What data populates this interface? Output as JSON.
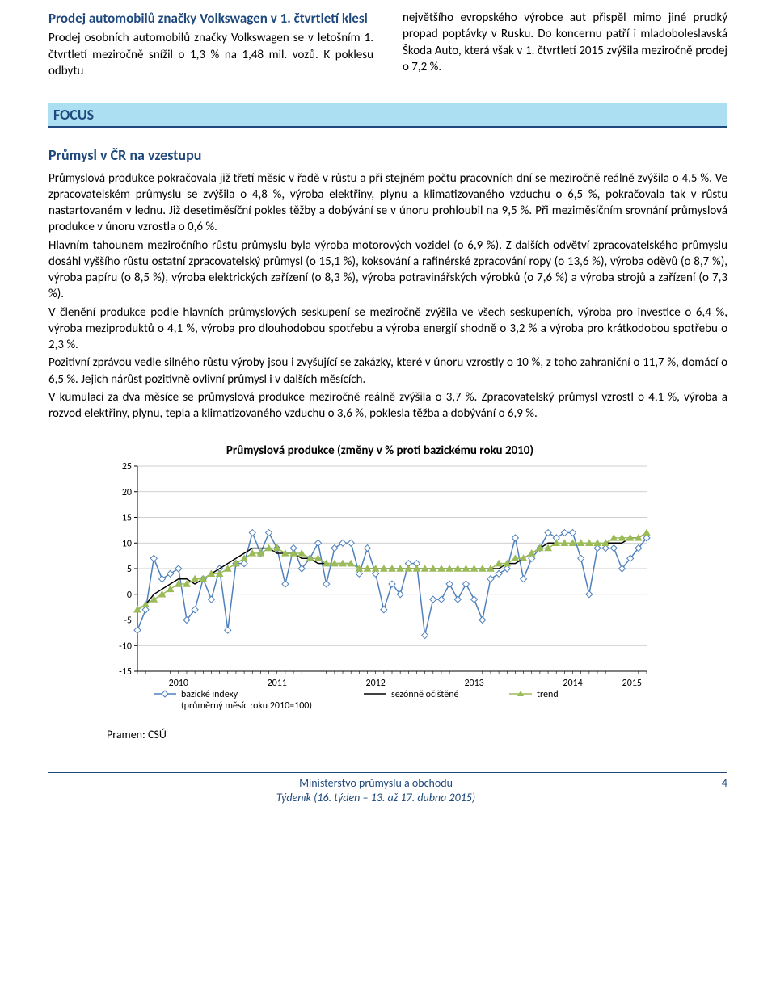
{
  "news": {
    "title": "Prodej automobilů značky Volkswagen v 1. čtvrtletí klesl",
    "col1": "Prodej osobních automobilů značky Volkswagen se v letošním 1. čtvrtletí meziročně snížil o 1,3 % na 1,48 mil. vozů. K poklesu odbytu",
    "col2": "největšího evropského výrobce aut přispěl mimo jiné prudký propad poptávky v Rusku. Do koncernu patří i mladoboleslavská Škoda Auto, která však v 1. čtvrtletí 2015 zvýšila meziročně prodej o 7,2 %."
  },
  "focus": {
    "label": "FOCUS",
    "subhead": "Průmysl v ČR na vzestupu",
    "paragraphs": [
      "Průmyslová produkce pokračovala již třetí měsíc v řadě v růstu a při stejném počtu pracovních dní se meziročně reálně zvýšila o 4,5 %. Ve zpracovatelském průmyslu se zvýšila o 4,8 %, výroba elektřiny, plynu a klimatizovaného vzduchu o 6,5 %, pokračovala tak v růstu nastartovaném v lednu. Již desetiměsíční pokles těžby a dobývání se v únoru prohloubil na 9,5 %. Při meziměsíčním srovnání průmyslová produkce v únoru vzrostla o 0,6 %.",
      "Hlavním tahounem meziročního růstu průmyslu byla výroba motorových vozidel (o 6,9 %). Z dalších odvětví zpracovatelského průmyslu dosáhl vyššího růstu ostatní zpracovatelský průmysl (o 15,1 %), koksování a rafinérské zpracování ropy (o 13,6 %), výroba oděvů (o 8,7 %), výroba papíru (o 8,5 %), výroba elektrických zařízení (o 8,3 %), výroba potravinářských výrobků (o 7,6 %) a výroba strojů a zařízení (o 7,3 %).",
      "V členění produkce podle hlavních průmyslových seskupení se meziročně zvýšila ve všech seskupeních, výroba pro investice o 6,4 %, výroba meziproduktů o 4,1 %, výroba pro dlouhodobou spotřebu a výroba energií shodně o 3,2 % a výroba pro krátkodobou spotřebu o 2,3 %.",
      "Pozitivní zprávou vedle silného růstu výroby jsou i zvyšující se zakázky, které v únoru vzrostly o 10 %, z toho zahraniční o 11,7 %, domácí o 6,5 %. Jejich nárůst pozitivně ovlivní průmysl i v dalších měsících.",
      "V kumulaci za dva měsíce se průmyslová produkce meziročně reálně zvýšila o 3,7 %. Zpracovatelský průmysl vzrostl o 4,1 %, výroba a rozvod elektřiny, plynu, tepla a klimatizovaného vzduchu o 3,6 %, poklesla těžba a dobývání o 6,9 %."
    ]
  },
  "chart": {
    "title": "Průmyslová produkce (změny v % proti bazickému roku 2010)",
    "source": "Pramen: CSÚ",
    "ylim": [
      -15,
      25
    ],
    "ytick_step": 5,
    "yticks": [
      -15,
      -10,
      -5,
      0,
      5,
      10,
      15,
      20,
      25
    ],
    "xlabels": [
      "2010",
      "2011",
      "2012",
      "2013",
      "2014",
      "2015"
    ],
    "x_per_year": 12,
    "x_count": 63,
    "colors": {
      "axis": "#000000",
      "grid": "#bfbfbf",
      "baz_line": "#4f81bd",
      "baz_marker_fill": "#ffffff",
      "season_line": "#000000",
      "trend_line": "#9bbb59",
      "background": "#ffffff"
    },
    "legend": {
      "items": [
        {
          "key": "baz",
          "label": "bazické indexy\n(průměrný měsíc roku 2010=100)",
          "color": "#4f81bd",
          "marker": "diamond"
        },
        {
          "key": "season",
          "label": "sezónně očištěné",
          "color": "#000000",
          "marker": "line"
        },
        {
          "key": "trend",
          "label": "trend",
          "color": "#9bbb59",
          "marker": "triangle"
        }
      ]
    },
    "series": {
      "baz": [
        -7,
        -3,
        7,
        3,
        4,
        5,
        -5,
        -3,
        3,
        -1,
        5,
        -7,
        6,
        6,
        12,
        8,
        12,
        9,
        2,
        9,
        5,
        7,
        10,
        2,
        9,
        10,
        10,
        4,
        9,
        4,
        -3,
        2,
        0,
        6,
        6,
        -8,
        -1,
        -1,
        2,
        -1,
        2,
        -1,
        -5,
        3,
        4,
        5,
        11,
        3,
        7,
        9,
        12,
        11,
        12,
        12,
        7,
        0,
        9,
        9,
        9,
        5,
        7,
        9,
        11
      ],
      "season": [
        -3,
        -2,
        0,
        1,
        2,
        3,
        3,
        2,
        3,
        4,
        5,
        6,
        7,
        8,
        9,
        9,
        9,
        8,
        8,
        8,
        7,
        7,
        6,
        6,
        6,
        6,
        6,
        5,
        5,
        5,
        5,
        5,
        5,
        5,
        5,
        5,
        5,
        5,
        5,
        5,
        5,
        5,
        5,
        5,
        5,
        6,
        6,
        7,
        8,
        9,
        10,
        10,
        10,
        10,
        10,
        10,
        10,
        10,
        10,
        10,
        11,
        11,
        12
      ],
      "trend": [
        -3,
        -2,
        -1,
        0,
        1,
        2,
        2,
        3,
        3,
        4,
        4,
        5,
        6,
        7,
        8,
        8,
        9,
        9,
        8,
        8,
        8,
        7,
        7,
        6,
        6,
        6,
        6,
        5,
        5,
        5,
        5,
        5,
        5,
        5,
        5,
        5,
        5,
        5,
        5,
        5,
        5,
        5,
        5,
        5,
        6,
        6,
        7,
        7,
        8,
        9,
        9,
        10,
        10,
        10,
        10,
        10,
        10,
        10,
        11,
        11,
        11,
        11,
        12
      ]
    },
    "line_width": 1.5,
    "marker_size": 4
  },
  "footer": {
    "line1": "Ministerstvo průmyslu a obchodu",
    "line2": "Týdeník (16. týden – 13. až 17. dubna 2015)",
    "page": "4"
  }
}
